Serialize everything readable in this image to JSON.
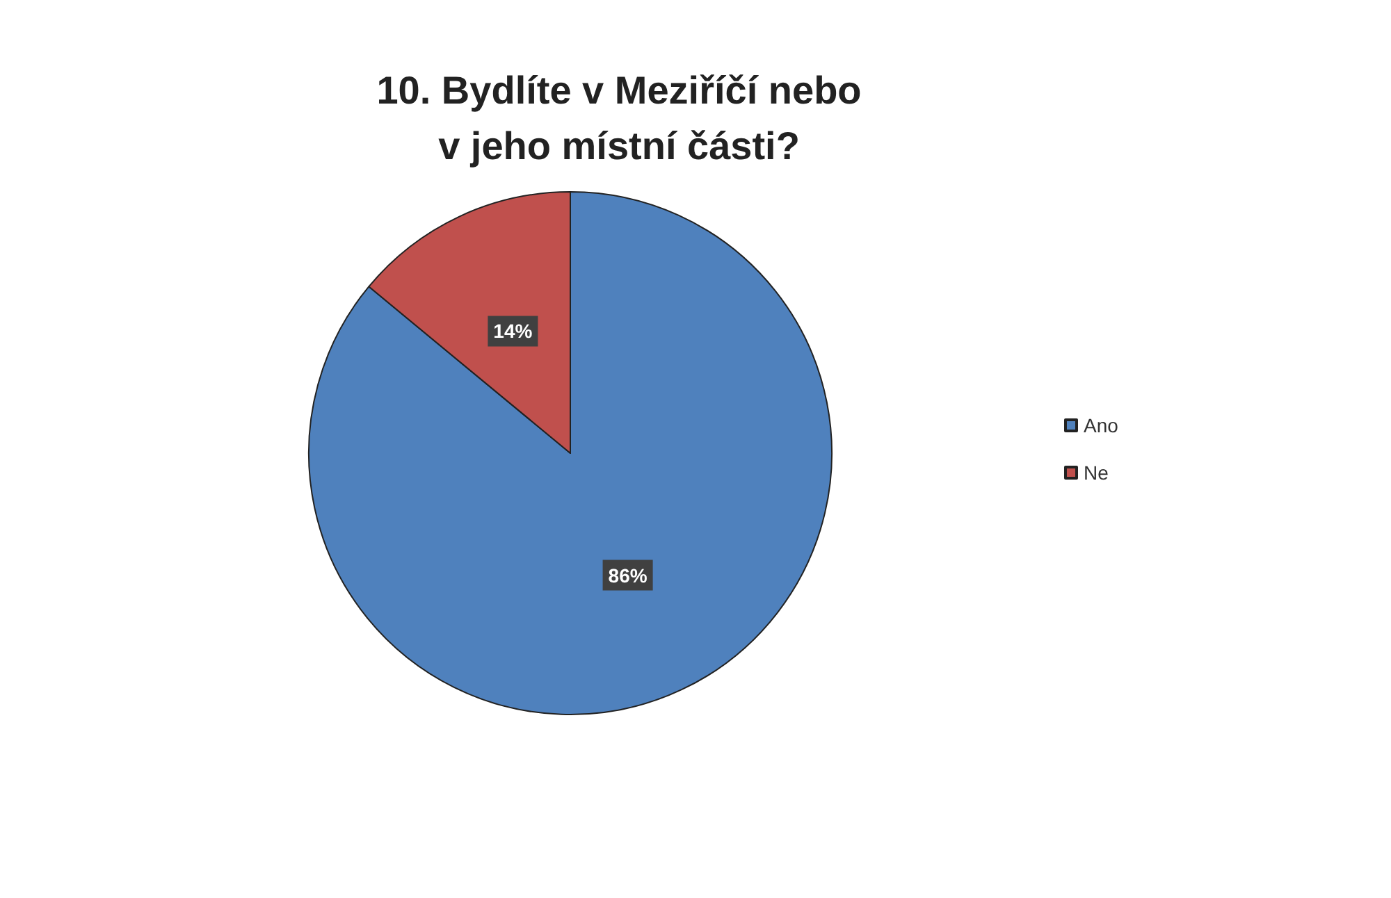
{
  "chart_data": {
    "type": "pie",
    "title": "10. Bydlíte v Meziříčí nebo\nv jeho místní části?",
    "categories": [
      "Ano",
      "Ne"
    ],
    "values": [
      86,
      14
    ],
    "colors": [
      "#4f81bd",
      "#c0504d"
    ],
    "value_labels": [
      "86%",
      "14%"
    ],
    "legend": "right"
  }
}
